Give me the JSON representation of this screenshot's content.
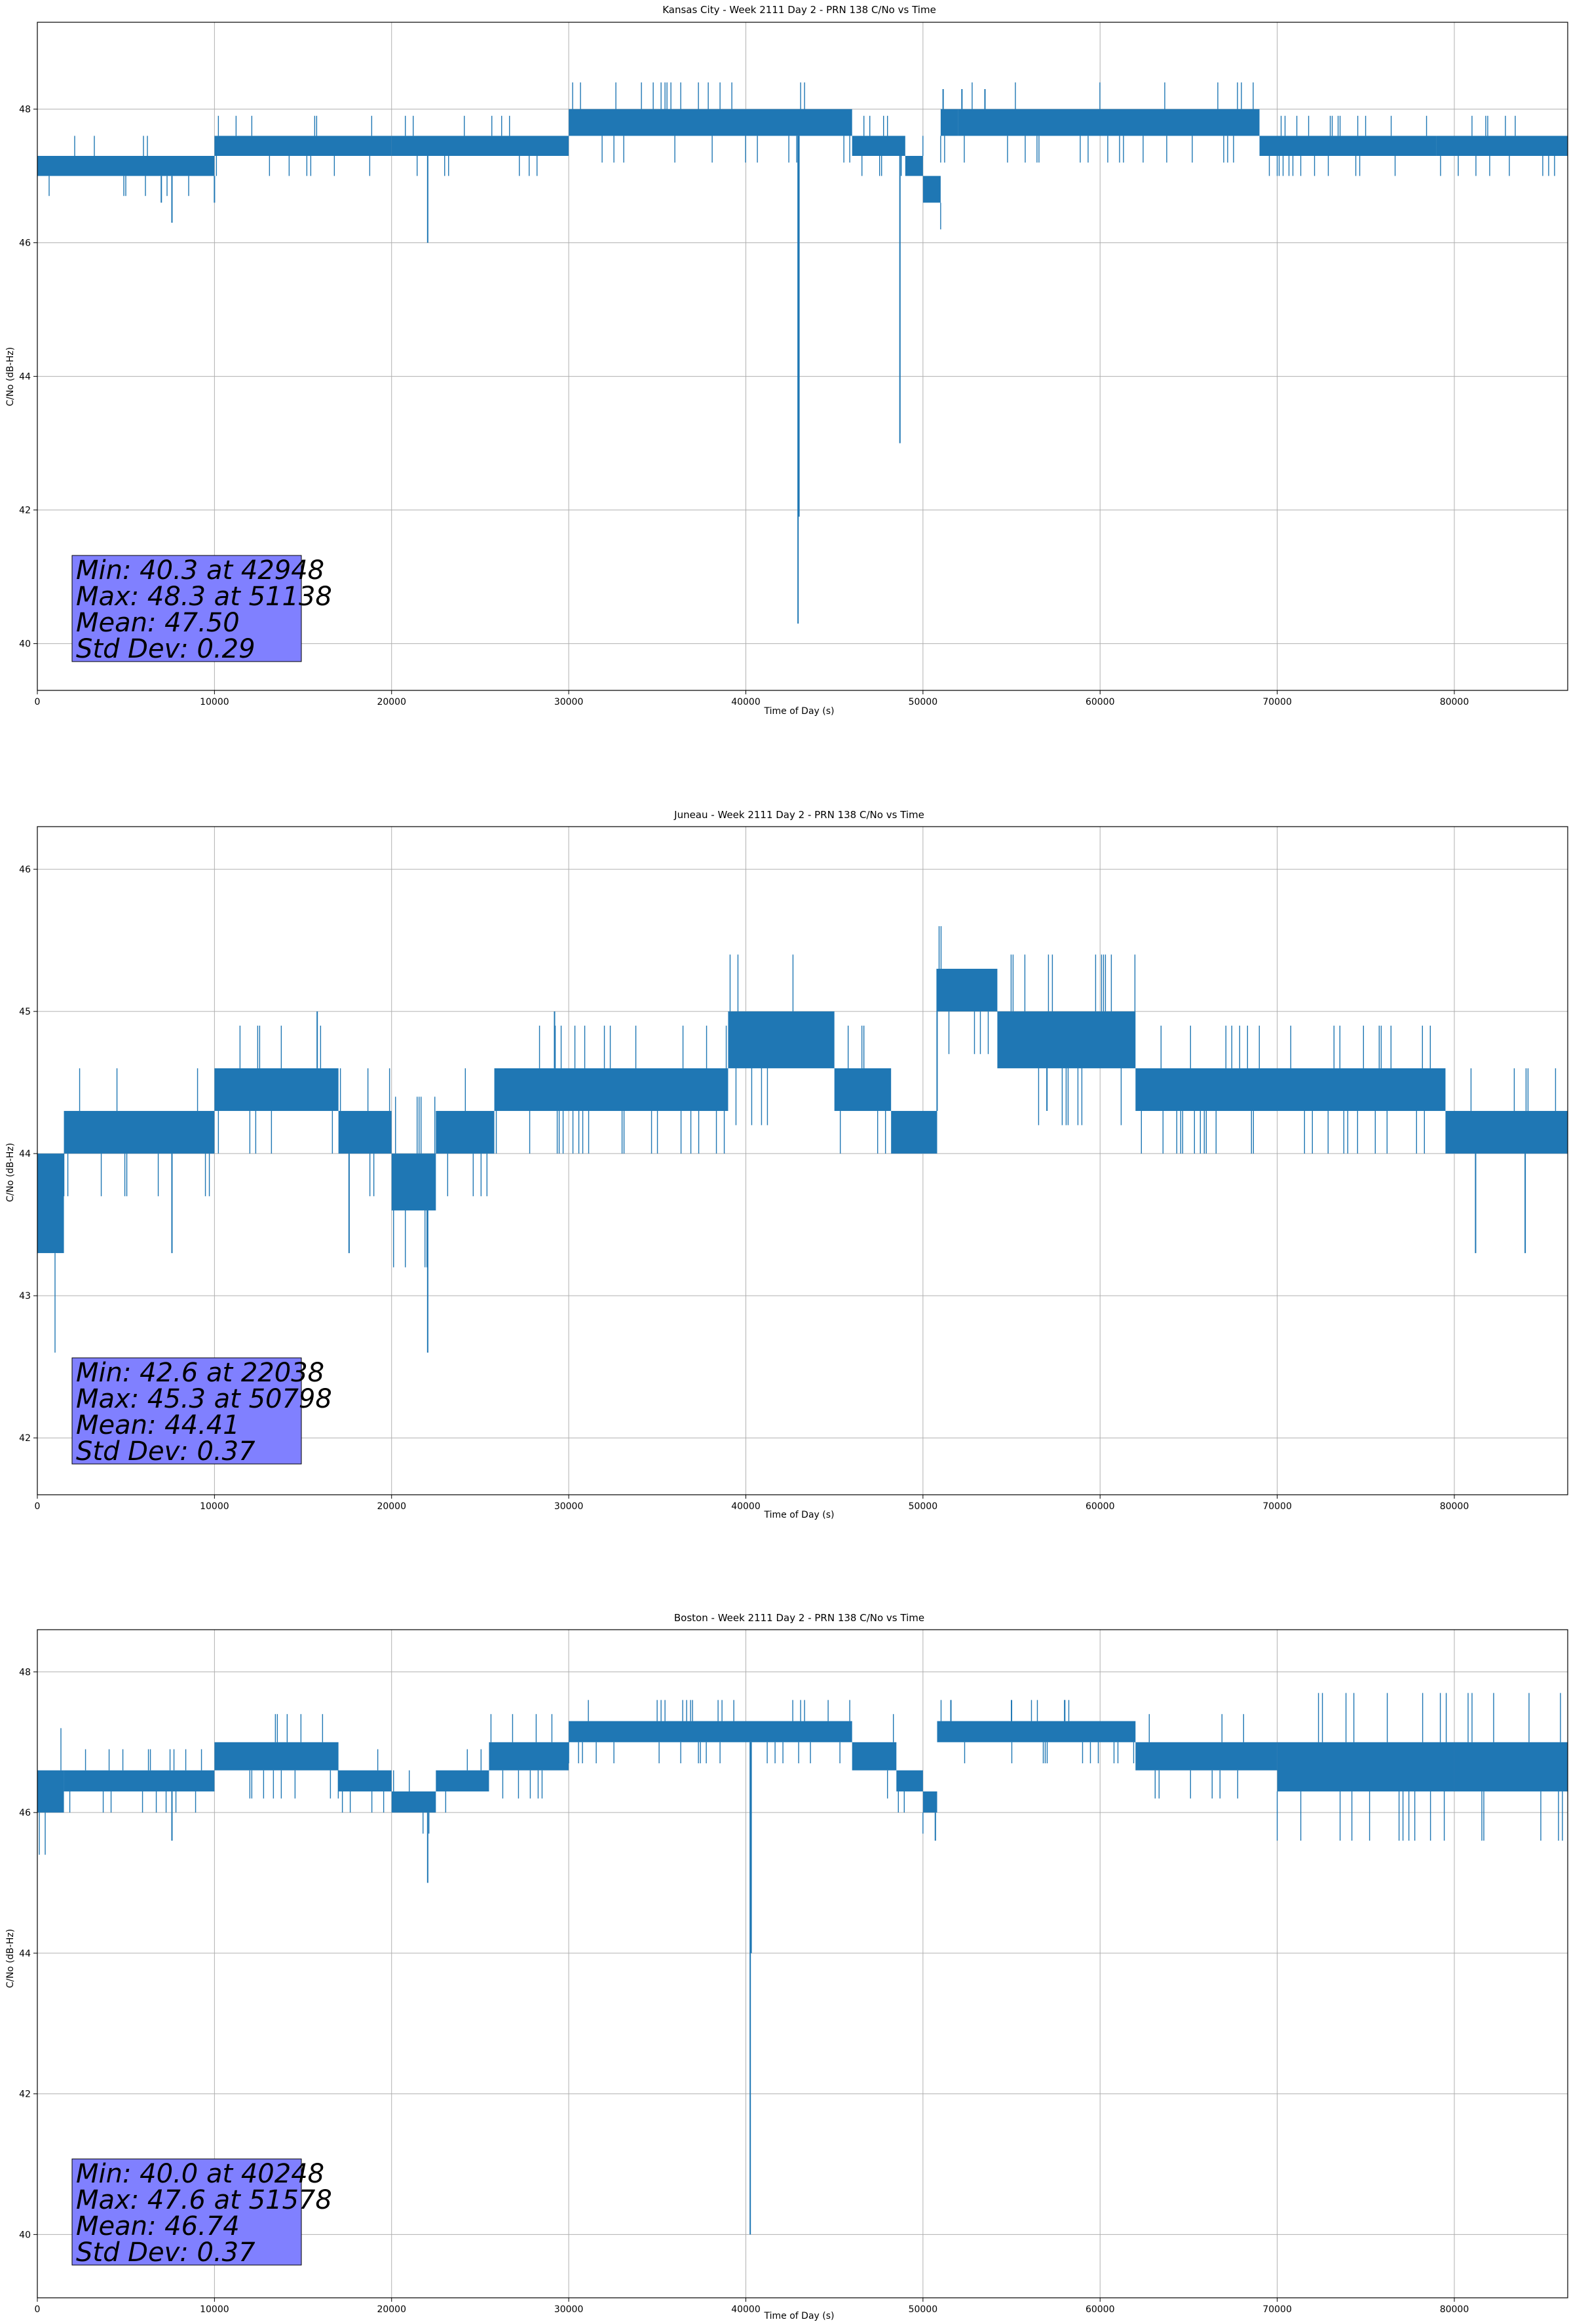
{
  "figure": {
    "background": "#ffffff",
    "line_color": "#1f77b4",
    "grid_color": "#b0b0b0",
    "stats_box_color": "#8080ff"
  },
  "chart_data": [
    {
      "type": "line",
      "title": "Kansas City - Week 2111 Day 2 - PRN 138 C/No vs Time",
      "xlabel": "Time of Day (s)",
      "ylabel": "C/No (dB-Hz)",
      "xlim": [
        0,
        86400
      ],
      "ylim": [
        39.3,
        49.3
      ],
      "xticks": [
        0,
        10000,
        20000,
        30000,
        40000,
        50000,
        60000,
        70000,
        80000
      ],
      "yticks": [
        40,
        42,
        44,
        46,
        48
      ],
      "grid": true,
      "stats_text": [
        "Min: 40.3 at 42948",
        "Max: 48.3 at 51138",
        "Mean: 47.50",
        "Std Dev: 0.29"
      ],
      "series": [
        {
          "bands": [
            {
              "x0": 0,
              "x1": 10000,
              "lo": 47.0,
              "hi": 47.3
            },
            {
              "x0": 10000,
              "x1": 20000,
              "lo": 47.3,
              "hi": 47.6
            },
            {
              "x0": 20000,
              "x1": 30000,
              "lo": 47.3,
              "hi": 47.6
            },
            {
              "x0": 30000,
              "x1": 46000,
              "lo": 47.6,
              "hi": 48.0
            },
            {
              "x0": 46000,
              "x1": 49000,
              "lo": 47.3,
              "hi": 47.6
            },
            {
              "x0": 49000,
              "x1": 50000,
              "lo": 47.0,
              "hi": 47.3
            },
            {
              "x0": 50000,
              "x1": 51000,
              "lo": 46.6,
              "hi": 47.0
            },
            {
              "x0": 51000,
              "x1": 52000,
              "lo": 47.6,
              "hi": 48.0
            },
            {
              "x0": 52000,
              "x1": 69000,
              "lo": 47.6,
              "hi": 48.0
            },
            {
              "x0": 69000,
              "x1": 79000,
              "lo": 47.3,
              "hi": 47.6
            },
            {
              "x0": 79000,
              "x1": 86400,
              "lo": 47.3,
              "hi": 47.6
            }
          ],
          "spikes": [
            {
              "x": 7000,
              "y": 46.6
            },
            {
              "x": 7600,
              "y": 46.3
            },
            {
              "x": 10000,
              "y": 46.6
            },
            {
              "x": 22038,
              "y": 46.0
            },
            {
              "x": 42948,
              "y": 40.3
            },
            {
              "x": 43000,
              "y": 41.9
            },
            {
              "x": 48700,
              "y": 43.0
            },
            {
              "x": 51138,
              "y": 48.3
            },
            {
              "x": 52200,
              "y": 48.3
            },
            {
              "x": 53500,
              "y": 48.3
            }
          ]
        }
      ]
    },
    {
      "type": "line",
      "title": "Juneau - Week 2111 Day 2 - PRN 138 C/No vs Time",
      "xlabel": "Time of Day (s)",
      "ylabel": "C/No (dB-Hz)",
      "xlim": [
        0,
        86400
      ],
      "ylim": [
        41.6,
        46.3
      ],
      "xticks": [
        0,
        10000,
        20000,
        30000,
        40000,
        50000,
        60000,
        70000,
        80000
      ],
      "yticks": [
        42,
        43,
        44,
        45,
        46
      ],
      "grid": true,
      "stats_text": [
        "Min: 42.6 at 22038",
        "Max: 45.3 at 50798",
        "Mean: 44.41",
        "Std Dev: 0.37"
      ],
      "series": [
        {
          "bands": [
            {
              "x0": 0,
              "x1": 1500,
              "lo": 43.3,
              "hi": 44.0
            },
            {
              "x0": 1500,
              "x1": 10000,
              "lo": 44.0,
              "hi": 44.3
            },
            {
              "x0": 10000,
              "x1": 17000,
              "lo": 44.3,
              "hi": 44.6
            },
            {
              "x0": 17000,
              "x1": 20000,
              "lo": 44.0,
              "hi": 44.3
            },
            {
              "x0": 20000,
              "x1": 22500,
              "lo": 43.6,
              "hi": 44.0
            },
            {
              "x0": 22500,
              "x1": 25800,
              "lo": 44.0,
              "hi": 44.3
            },
            {
              "x0": 25800,
              "x1": 39000,
              "lo": 44.3,
              "hi": 44.6
            },
            {
              "x0": 39000,
              "x1": 45000,
              "lo": 44.6,
              "hi": 45.0
            },
            {
              "x0": 45000,
              "x1": 48200,
              "lo": 44.3,
              "hi": 44.6
            },
            {
              "x0": 48200,
              "x1": 50800,
              "lo": 44.0,
              "hi": 44.3
            },
            {
              "x0": 50800,
              "x1": 54200,
              "lo": 45.0,
              "hi": 45.3
            },
            {
              "x0": 54200,
              "x1": 62000,
              "lo": 44.6,
              "hi": 45.0
            },
            {
              "x0": 62000,
              "x1": 79500,
              "lo": 44.3,
              "hi": 44.6
            },
            {
              "x0": 79500,
              "x1": 86400,
              "lo": 44.0,
              "hi": 44.3
            }
          ],
          "spikes": [
            {
              "x": 22038,
              "y": 42.6
            },
            {
              "x": 7600,
              "y": 43.3
            },
            {
              "x": 17600,
              "y": 43.3
            },
            {
              "x": 15800,
              "y": 45.0
            },
            {
              "x": 29200,
              "y": 45.0
            },
            {
              "x": 50798,
              "y": 45.3
            },
            {
              "x": 57000,
              "y": 44.3
            },
            {
              "x": 81200,
              "y": 43.3
            },
            {
              "x": 84000,
              "y": 43.3
            }
          ]
        }
      ]
    },
    {
      "type": "line",
      "title": "Boston - Week 2111 Day 2 - PRN 138 C/No vs Time",
      "xlabel": "Time of Day (s)",
      "ylabel": "C/No (dB-Hz)",
      "xlim": [
        0,
        86400
      ],
      "ylim": [
        39.1,
        48.6
      ],
      "xticks": [
        0,
        10000,
        20000,
        30000,
        40000,
        50000,
        60000,
        70000,
        80000
      ],
      "yticks": [
        40,
        42,
        44,
        46,
        48
      ],
      "grid": true,
      "stats_text": [
        "Min: 40.0 at 40248",
        "Max: 47.6 at 51578",
        "Mean: 46.74",
        "Std Dev: 0.37"
      ],
      "series": [
        {
          "bands": [
            {
              "x0": 0,
              "x1": 1500,
              "lo": 46.0,
              "hi": 46.6
            },
            {
              "x0": 1500,
              "x1": 10000,
              "lo": 46.3,
              "hi": 46.6
            },
            {
              "x0": 10000,
              "x1": 17000,
              "lo": 46.6,
              "hi": 47.0
            },
            {
              "x0": 17000,
              "x1": 20000,
              "lo": 46.3,
              "hi": 46.6
            },
            {
              "x0": 20000,
              "x1": 22500,
              "lo": 46.0,
              "hi": 46.3
            },
            {
              "x0": 22500,
              "x1": 25500,
              "lo": 46.3,
              "hi": 46.6
            },
            {
              "x0": 25500,
              "x1": 30000,
              "lo": 46.6,
              "hi": 47.0
            },
            {
              "x0": 30000,
              "x1": 46000,
              "lo": 47.0,
              "hi": 47.3
            },
            {
              "x0": 46000,
              "x1": 48500,
              "lo": 46.6,
              "hi": 47.0
            },
            {
              "x0": 48500,
              "x1": 50000,
              "lo": 46.3,
              "hi": 46.6
            },
            {
              "x0": 50000,
              "x1": 50800,
              "lo": 46.0,
              "hi": 46.3
            },
            {
              "x0": 50800,
              "x1": 62000,
              "lo": 47.0,
              "hi": 47.3
            },
            {
              "x0": 62000,
              "x1": 70000,
              "lo": 46.6,
              "hi": 47.0
            },
            {
              "x0": 70000,
              "x1": 80000,
              "lo": 46.3,
              "hi": 47.0
            },
            {
              "x0": 80000,
              "x1": 86400,
              "lo": 46.3,
              "hi": 47.0
            }
          ],
          "spikes": [
            {
              "x": 40248,
              "y": 40.0
            },
            {
              "x": 40300,
              "y": 44.0
            },
            {
              "x": 22038,
              "y": 45.0
            },
            {
              "x": 7600,
              "y": 45.6
            },
            {
              "x": 50700,
              "y": 45.6
            },
            {
              "x": 51578,
              "y": 47.6
            },
            {
              "x": 55000,
              "y": 47.6
            },
            {
              "x": 58000,
              "y": 47.6
            }
          ]
        }
      ]
    }
  ]
}
